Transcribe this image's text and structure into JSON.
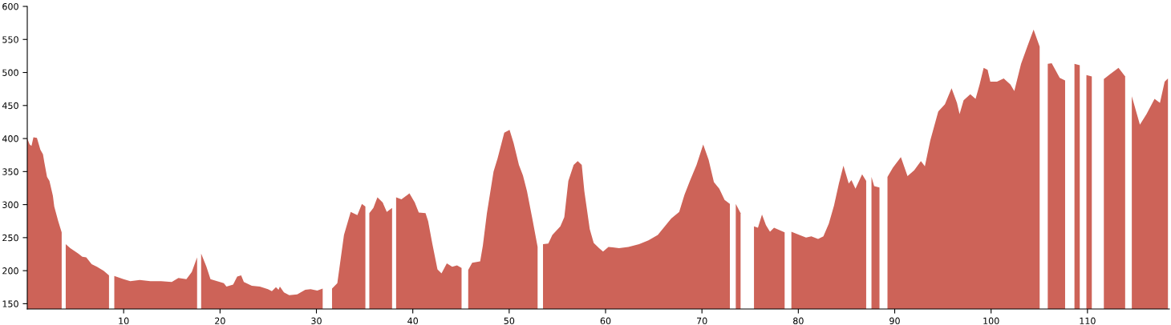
{
  "chart_data": {
    "type": "area",
    "color": "#cd6358",
    "x": [
      0.0,
      0.25,
      0.44,
      0.64,
      1.0,
      1.36,
      1.63,
      1.77,
      2.05,
      2.3,
      2.66,
      2.8,
      3.21,
      3.57,
      3.96,
      3.99,
      4.46,
      5.29,
      5.71,
      6.12,
      6.68,
      7.23,
      7.92,
      8.48,
      8.59,
      9.03,
      9.99,
      10.69,
      11.67,
      12.77,
      13.88,
      14.99,
      15.68,
      16.51,
      17.07,
      17.62,
      17.98,
      18.04,
      18.59,
      19.01,
      19.7,
      20.39,
      20.67,
      21.36,
      21.78,
      22.19,
      22.47,
      23.3,
      24.13,
      24.97,
      25.38,
      25.8,
      26.07,
      26.21,
      26.63,
      27.18,
      28.01,
      28.84,
      29.4,
      30.09,
      30.65,
      31.09,
      31.62,
      32.17,
      32.86,
      33.56,
      34.25,
      34.72,
      35.08,
      35.27,
      35.49,
      35.91,
      36.33,
      36.88,
      37.3,
      37.85,
      38.13,
      38.27,
      38.82,
      39.65,
      40.21,
      40.62,
      41.32,
      41.59,
      42.01,
      42.56,
      42.98,
      43.53,
      44.09,
      44.59,
      45.06,
      45.42,
      45.75,
      46.16,
      46.99,
      47.27,
      47.69,
      48.38,
      48.8,
      49.49,
      50.04,
      50.46,
      51.01,
      51.43,
      51.85,
      52.4,
      52.95,
      53.18,
      53.51,
      54.06,
      54.48,
      55.31,
      55.72,
      56.14,
      56.69,
      57.11,
      57.53,
      57.8,
      58.36,
      58.77,
      59.33,
      59.74,
      60.3,
      61.4,
      62.37,
      63.48,
      64.45,
      65.42,
      66.25,
      66.81,
      67.64,
      68.19,
      68.75,
      69.44,
      70.13,
      70.69,
      71.24,
      71.8,
      72.35,
      72.9,
      73.24,
      73.51,
      74.01,
      74.18,
      74.43,
      74.76,
      74.93,
      75.4,
      75.81,
      76.23,
      76.64,
      77.06,
      77.48,
      78.58,
      78.89,
      79.28,
      80.11,
      80.8,
      81.35,
      82.05,
      82.6,
      83.16,
      83.71,
      84.21,
      84.68,
      85.23,
      85.51,
      85.93,
      86.62,
      87.04,
      87.34,
      87.59,
      87.87,
      88.42,
      88.7,
      89.25,
      89.81,
      90.64,
      91.33,
      92.02,
      92.72,
      93.13,
      93.69,
      94.52,
      95.21,
      95.9,
      96.46,
      96.73,
      97.15,
      97.84,
      98.39,
      98.81,
      99.23,
      99.64,
      99.92,
      100.61,
      101.31,
      102.0,
      102.41,
      103.11,
      103.8,
      104.41,
      105.04,
      105.27,
      105.88,
      106.29,
      107.12,
      107.68,
      108.15,
      108.65,
      109.2,
      109.76,
      109.89,
      110.45,
      110.86,
      111.28,
      111.7,
      112.39,
      113.22,
      113.91,
      114.19,
      114.6,
      115.44,
      116.13,
      116.96,
      117.52,
      118.01,
      118.35
    ],
    "values": [
      400,
      391,
      389,
      402,
      401,
      383,
      376,
      364,
      342,
      336,
      313,
      297,
      275,
      258,
      null,
      240,
      234,
      226,
      221,
      220,
      210,
      206,
      200,
      193,
      null,
      192,
      187,
      184,
      186,
      184,
      184,
      183,
      189,
      187,
      198,
      220,
      null,
      226,
      206,
      187,
      184,
      181,
      176,
      179,
      191,
      193,
      183,
      177,
      176,
      172,
      169,
      175,
      171,
      176,
      167,
      163,
      164,
      171,
      172,
      170,
      173,
      null,
      173,
      181,
      254,
      289,
      284,
      301,
      297,
      null,
      287,
      295,
      311,
      303,
      289,
      295,
      null,
      311,
      308,
      317,
      303,
      288,
      287,
      275,
      242,
      202,
      196,
      211,
      206,
      208,
      204,
      null,
      201,
      212,
      214,
      238,
      287,
      350,
      370,
      409,
      413,
      393,
      360,
      344,
      320,
      279,
      236,
      null,
      240,
      241,
      254,
      267,
      281,
      336,
      360,
      366,
      360,
      320,
      263,
      242,
      234,
      229,
      236,
      234,
      236,
      240,
      246,
      254,
      269,
      279,
      289,
      315,
      336,
      360,
      391,
      368,
      334,
      324,
      307,
      301,
      null,
      301,
      287,
      null,
      275,
      null,
      null,
      267,
      265,
      285,
      269,
      259,
      265,
      258,
      null,
      259,
      254,
      250,
      252,
      248,
      252,
      271,
      299,
      332,
      359,
      332,
      337,
      324,
      346,
      336,
      null,
      342,
      328,
      326,
      null,
      342,
      356,
      372,
      343,
      352,
      366,
      358,
      397,
      441,
      452,
      476,
      454,
      437,
      458,
      467,
      460,
      482,
      507,
      504,
      486,
      486,
      491,
      482,
      472,
      513,
      541,
      565,
      539,
      null,
      513,
      514,
      492,
      488,
      null,
      513,
      511,
      null,
      496,
      494,
      null,
      null,
      490,
      498,
      507,
      494,
      null,
      464,
      421,
      437,
      460,
      454,
      486,
      491
    ],
    "xlim": [
      0,
      118.5
    ],
    "ylim": [
      142,
      600
    ],
    "xticks": [
      10,
      20,
      30,
      40,
      50,
      60,
      70,
      80,
      90,
      100,
      110
    ],
    "yticks": [
      150,
      200,
      250,
      300,
      350,
      400,
      450,
      500,
      550,
      600
    ],
    "grid": false
  }
}
